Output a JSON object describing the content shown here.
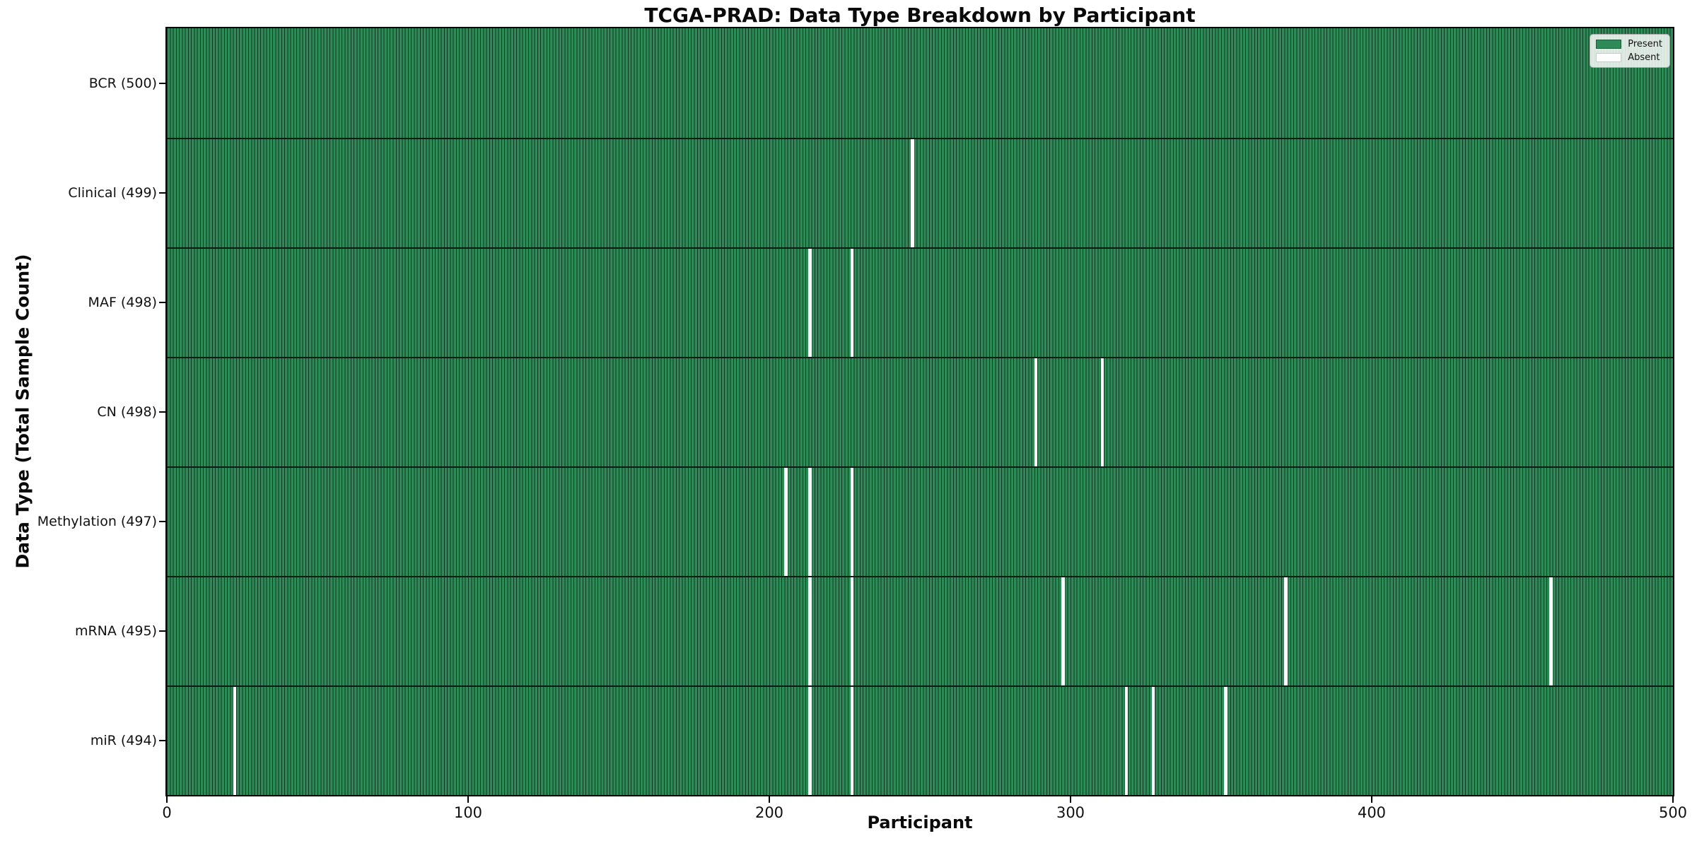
{
  "title": "TCGA-PRAD: Data Type Breakdown by Participant",
  "axes": {
    "xlabel": "Participant",
    "ylabel": "Data Type (Total Sample Count)",
    "x_ticks": [
      "0",
      "100",
      "200",
      "300",
      "400",
      "500"
    ]
  },
  "legend": {
    "items": [
      {
        "label": "Present",
        "color": "#2e8b57"
      },
      {
        "label": "Absent",
        "color": "#ffffff"
      }
    ]
  },
  "colors": {
    "present": "#2e8b57",
    "absent": "#ffffff",
    "bar_edge": "rgba(6,32,19,0.78)",
    "row_divider": "#081c11",
    "spine": "#000000"
  },
  "chart_data": {
    "type": "heatmap",
    "title": "TCGA-PRAD: Data Type Breakdown by Participant",
    "xlabel": "Participant",
    "ylabel": "Data Type (Total Sample Count)",
    "x_range": [
      0,
      500
    ],
    "x_tick_values": [
      0,
      100,
      200,
      300,
      400,
      500
    ],
    "n_participants": 500,
    "grid": false,
    "legend_entries": [
      "Present",
      "Absent"
    ],
    "legend_position": "upper right",
    "rows": [
      {
        "label": "BCR (500)",
        "data_type": "BCR",
        "total_samples": 500,
        "absent_participants": []
      },
      {
        "label": "Clinical (499)",
        "data_type": "Clinical",
        "total_samples": 499,
        "absent_participants": [
          247
        ]
      },
      {
        "label": "MAF (498)",
        "data_type": "MAF",
        "total_samples": 498,
        "absent_participants": [
          213,
          227
        ]
      },
      {
        "label": "CN (498)",
        "data_type": "CN",
        "total_samples": 498,
        "absent_participants": [
          288,
          310
        ]
      },
      {
        "label": "Methylation (497)",
        "data_type": "Methylation",
        "total_samples": 497,
        "absent_participants": [
          205,
          213,
          227
        ]
      },
      {
        "label": "mRNA (495)",
        "data_type": "mRNA",
        "total_samples": 495,
        "absent_participants": [
          213,
          227,
          297,
          371,
          459
        ]
      },
      {
        "label": "miR (494)",
        "data_type": "miR",
        "total_samples": 494,
        "absent_participants": [
          22,
          213,
          227,
          318,
          327,
          351
        ]
      }
    ]
  }
}
